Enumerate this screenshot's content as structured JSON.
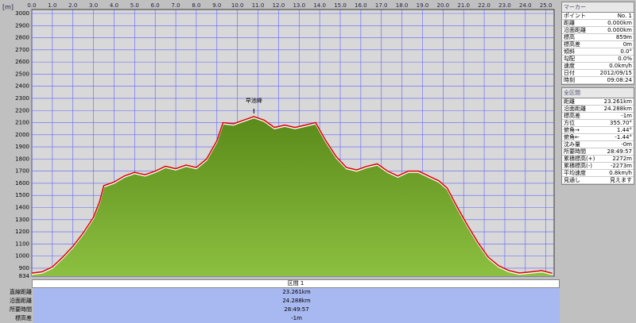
{
  "chart_data": {
    "type": "area",
    "y_label": "[m]",
    "x": [
      0,
      0.5,
      1,
      1.5,
      2,
      2.5,
      3,
      3.3,
      3.5,
      4,
      4.5,
      5,
      5.5,
      6,
      6.5,
      7,
      7.5,
      8,
      8.5,
      9,
      9.3,
      9.8,
      10.3,
      10.8,
      11.3,
      11.8,
      12.3,
      12.8,
      13.3,
      13.8,
      14.3,
      14.8,
      15.3,
      15.8,
      16.3,
      16.8,
      17.3,
      17.8,
      18.3,
      18.8,
      19.3,
      19.8,
      20.2,
      20.7,
      21.2,
      21.7,
      22.2,
      22.7,
      23.2,
      23.7,
      24.3,
      24.8,
      25.3
    ],
    "y": [
      859,
      870,
      910,
      990,
      1080,
      1190,
      1320,
      1450,
      1580,
      1610,
      1660,
      1690,
      1670,
      1700,
      1740,
      1720,
      1750,
      1730,
      1800,
      1950,
      2100,
      2090,
      2120,
      2150,
      2120,
      2060,
      2080,
      2060,
      2080,
      2100,
      1950,
      1820,
      1730,
      1710,
      1740,
      1760,
      1700,
      1660,
      1700,
      1700,
      1660,
      1620,
      1560,
      1400,
      1250,
      1110,
      990,
      920,
      880,
      860,
      870,
      880,
      858
    ],
    "fill_color": "#6a9a2a",
    "line_color": "#e00000",
    "xlim": [
      0,
      25.4
    ],
    "ylim": [
      834,
      3000
    ],
    "xticks": [
      {
        "value": 0,
        "label": "0.0"
      },
      {
        "value": 1,
        "label": "1.0"
      },
      {
        "value": 2,
        "label": "2.0"
      },
      {
        "value": 3,
        "label": "3.0"
      },
      {
        "value": 4,
        "label": "4.0"
      },
      {
        "value": 5,
        "label": "5.0"
      },
      {
        "value": 6,
        "label": "6.0"
      },
      {
        "value": 7,
        "label": "7.0"
      },
      {
        "value": 8,
        "label": "8.0"
      },
      {
        "value": 9,
        "label": "9.0"
      },
      {
        "value": 10,
        "label": "10.0"
      },
      {
        "value": 11,
        "label": "11.0"
      },
      {
        "value": 12,
        "label": "12.0"
      },
      {
        "value": 13,
        "label": "13.0"
      },
      {
        "value": 14,
        "label": "14.0"
      },
      {
        "value": 15,
        "label": "15.0"
      },
      {
        "value": 16,
        "label": "16.0"
      },
      {
        "value": 17,
        "label": "17.0"
      },
      {
        "value": 18,
        "label": "18.0"
      },
      {
        "value": 19,
        "label": "19.0"
      },
      {
        "value": 20,
        "label": "20.0"
      },
      {
        "value": 21,
        "label": "21.0"
      },
      {
        "value": 22,
        "label": "22.0"
      },
      {
        "value": 23,
        "label": "23.0"
      },
      {
        "value": 24,
        "label": "24.0"
      },
      {
        "value": 25,
        "label": "25.0"
      }
    ],
    "yticks": [
      834,
      900,
      1000,
      1100,
      1200,
      1300,
      1400,
      1500,
      1600,
      1700,
      1800,
      1900,
      2000,
      2100,
      2200,
      2300,
      2400,
      2500,
      2600,
      2700,
      2800,
      2900,
      3000
    ],
    "grid": true,
    "annotations": [
      {
        "text": "早池峰",
        "x": 10.8,
        "y": 2150
      }
    ]
  },
  "side_panel": {
    "marker": {
      "title": "マーカー",
      "rows": [
        [
          "ポイント",
          "No. 1"
        ],
        [
          "距離",
          "0.000km"
        ],
        [
          "沿面距離",
          "0.000km"
        ],
        [
          "標高",
          "859m"
        ],
        [
          "標高差",
          "0m"
        ],
        [
          "傾斜",
          "0.0°"
        ],
        [
          "勾配",
          "0.0%"
        ],
        [
          "速度",
          "0.0km/h"
        ],
        [
          "日付",
          "2012/09/15"
        ],
        [
          "時刻",
          "09:08:24"
        ]
      ]
    },
    "total": {
      "title": "全区間",
      "rows": [
        [
          "距離",
          "23.261km"
        ],
        [
          "沿面距離",
          "24.288km"
        ],
        [
          "標高差",
          "-1m"
        ],
        [
          "方位",
          "355.70°"
        ],
        [
          "俯角→",
          "1.44°"
        ],
        [
          "俯角←",
          "-1.44°"
        ],
        [
          "沈み量",
          "-0m"
        ],
        [
          "所要時間",
          "28:49:57"
        ],
        [
          "累積標高(+)",
          "2272m"
        ],
        [
          "累積標高(-)",
          "-2273m"
        ],
        [
          "平均速度",
          "0.8km/h"
        ],
        [
          "見通し",
          "見えます"
        ]
      ]
    }
  },
  "bottom": {
    "header": "区間 1",
    "rows": [
      [
        "直線距離",
        "23.261km"
      ],
      [
        "沿面距離",
        "24.288km"
      ],
      [
        "所要時間",
        "28:49:57"
      ],
      [
        "標高差",
        "-1m"
      ]
    ]
  }
}
